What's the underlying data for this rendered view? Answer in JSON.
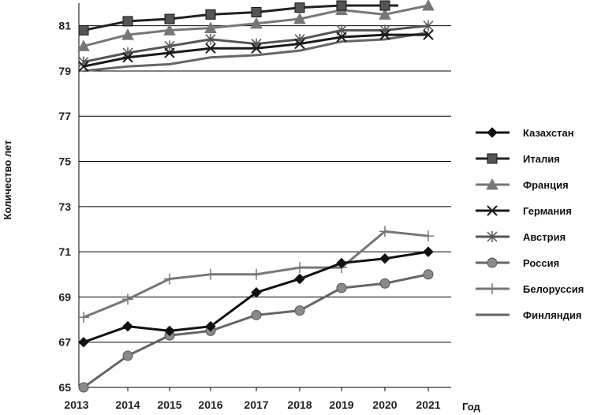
{
  "chart_data": {
    "type": "line",
    "xlabel": "Год",
    "ylabel": "Количество лет",
    "ylim": [
      65,
      82
    ],
    "y_ticks": [
      65,
      67,
      69,
      71,
      73,
      75,
      77,
      79,
      81
    ],
    "grid": "horizontal",
    "legend_position": "right",
    "x": [
      "2013",
      "2014",
      "2015",
      "2016",
      "2017",
      "2018",
      "2019",
      "2020",
      "2021"
    ],
    "series": [
      {
        "name": "Казахстан",
        "color": "#111111",
        "marker": "diamond",
        "values": [
          67.0,
          67.7,
          67.5,
          67.7,
          69.2,
          69.8,
          70.5,
          70.7,
          71.0
        ]
      },
      {
        "name": "Италия",
        "color": "#222222",
        "marker": "square",
        "values": [
          80.8,
          81.2,
          81.3,
          81.5,
          81.6,
          81.8,
          82.0,
          82.0,
          null
        ]
      },
      {
        "name": "Франция",
        "color": "#777777",
        "marker": "triangle",
        "values": [
          80.1,
          80.6,
          80.8,
          80.9,
          81.1,
          81.3,
          81.7,
          81.5,
          82.0
        ]
      },
      {
        "name": "Германия",
        "color": "#1a1a1a",
        "marker": "x",
        "values": [
          79.2,
          79.6,
          79.8,
          80.0,
          80.0,
          80.2,
          80.5,
          80.6,
          80.6
        ]
      },
      {
        "name": "Австрия",
        "color": "#555555",
        "marker": "asterisk",
        "values": [
          79.4,
          79.8,
          80.1,
          80.4,
          80.2,
          80.4,
          80.8,
          80.8,
          81.0
        ]
      },
      {
        "name": "Россия",
        "color": "#666666",
        "marker": "circle",
        "values": [
          65.0,
          66.4,
          67.3,
          67.5,
          68.2,
          68.4,
          69.4,
          69.6,
          70.0
        ]
      },
      {
        "name": "Белоруссия",
        "color": "#777777",
        "marker": "plus",
        "values": [
          68.1,
          68.9,
          69.8,
          70.0,
          70.0,
          70.3,
          70.3,
          71.9,
          71.7
        ]
      },
      {
        "name": "Финляндия",
        "color": "#666666",
        "marker": "none",
        "values": [
          79.0,
          79.2,
          79.3,
          79.6,
          79.7,
          79.9,
          80.3,
          80.4,
          80.7
        ]
      }
    ]
  }
}
